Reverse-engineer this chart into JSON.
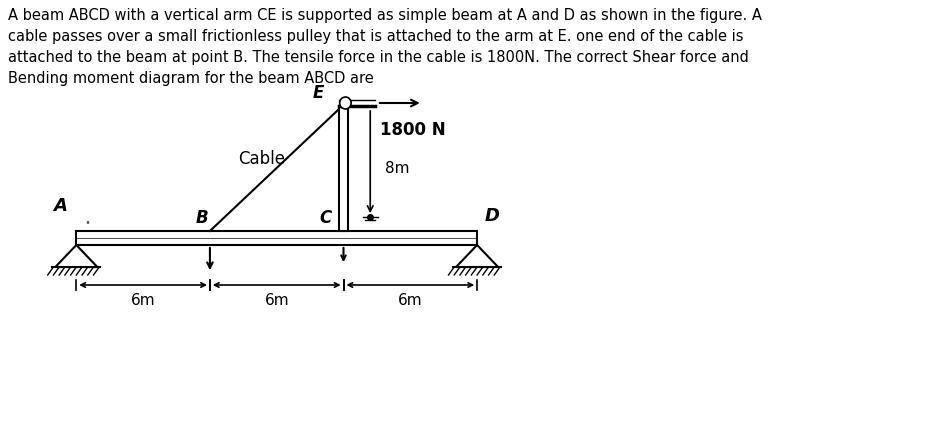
{
  "title_text": "A beam ABCD with a vertical arm CE is supported as simple beam at A and D as shown in the figure. A\ncable passes over a small frictionless pulley that is attached to the arm at E. one end of the cable is\nattached to the beam at point B. The tensile force in the cable is 1800N. The correct Shear force and\nBending moment diagram for the beam ABCD are",
  "background_color": "#ffffff",
  "beam_color": "#000000",
  "text_color": "#000000",
  "cable_label": "Cable",
  "force_label": "1800 N",
  "arm_label": "8m",
  "dim_labels": [
    "6m",
    "6m",
    "6m"
  ],
  "point_labels": [
    "A",
    "B",
    "C",
    "D",
    "E"
  ],
  "title_fontsize": 10.5,
  "label_fontsize": 11,
  "dim_fontsize": 11
}
